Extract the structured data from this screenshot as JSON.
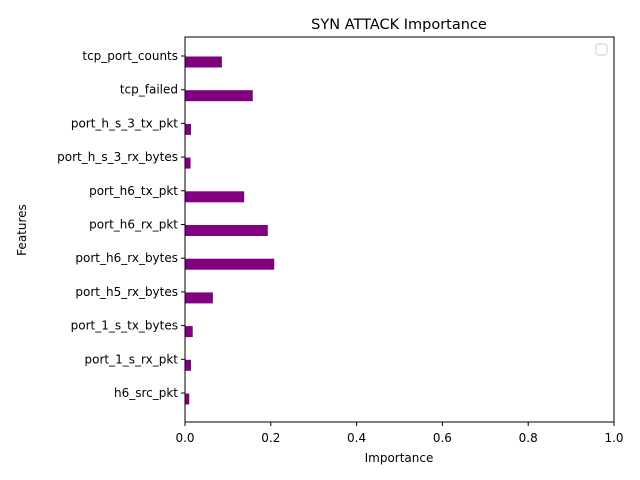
{
  "chart_data": {
    "type": "bar",
    "orientation": "horizontal",
    "title": "SYN ATTACK Importance",
    "xlabel": "Importance",
    "ylabel": "Features",
    "xlim": [
      0,
      1
    ],
    "xticks": [
      "0.0",
      "0.2",
      "0.4",
      "0.6",
      "0.8",
      "1.0"
    ],
    "categories": [
      "h6_src_pkt",
      "port_1_s_rx_pkt",
      "port_1_s_tx_bytes",
      "port_h5_rx_bytes",
      "port_h6_rx_bytes",
      "port_h6_rx_pkt",
      "port_h6_tx_pkt",
      "port_h_s_3_rx_bytes",
      "port_h_s_3_tx_pkt",
      "tcp_failed",
      "tcp_port_counts"
    ],
    "values": [
      0.01,
      0.014,
      0.018,
      0.065,
      0.208,
      0.193,
      0.138,
      0.013,
      0.014,
      0.158,
      0.086
    ],
    "bar_color": "#800080",
    "grid": false,
    "legend": {
      "placement": "upper-right",
      "entries": []
    }
  }
}
